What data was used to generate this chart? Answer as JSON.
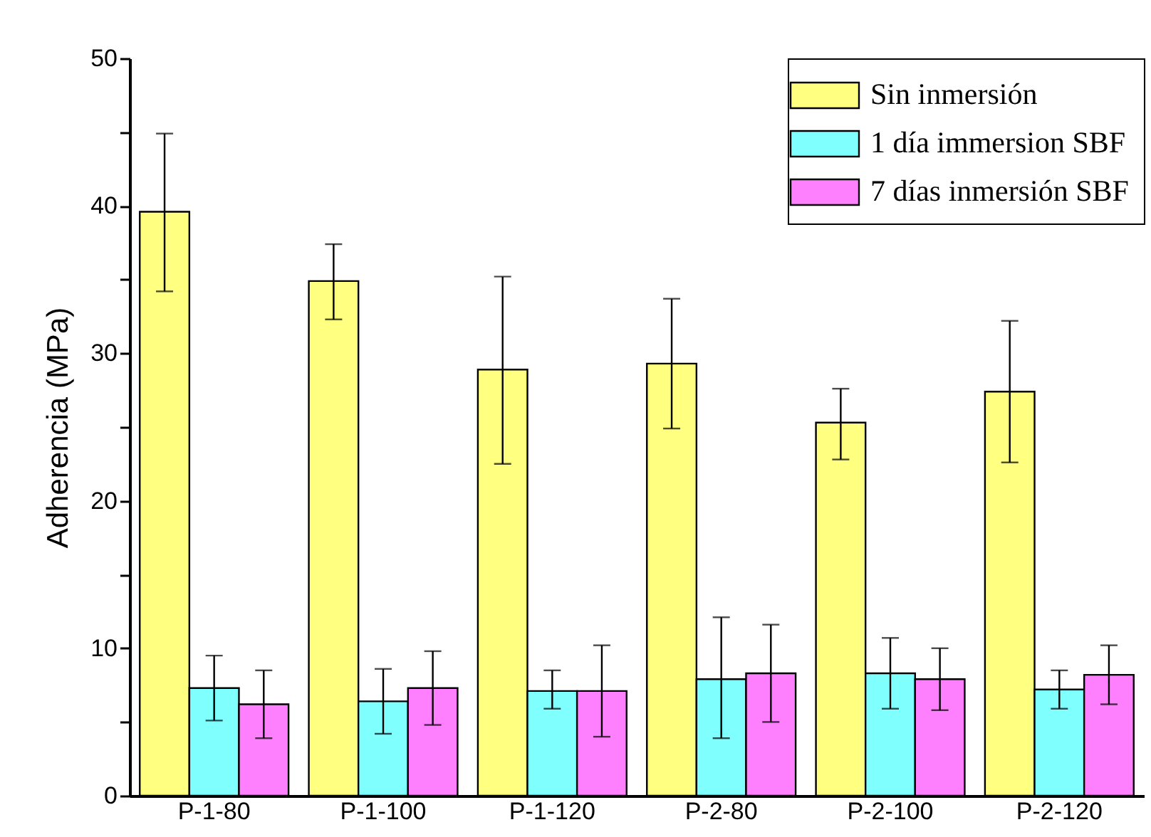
{
  "chart_data": {
    "type": "bar",
    "ylabel": "Adherencia (MPa)",
    "categories": [
      "P-1-80",
      "P-1-100",
      "P-1-120",
      "P-2-80",
      "P-2-100",
      "P-2-120"
    ],
    "series": [
      {
        "name": "Sin inmersión",
        "color": "#ffff80",
        "values": [
          39.6,
          34.9,
          28.9,
          29.3,
          25.3,
          27.4
        ],
        "errors": [
          [
            34.2,
            44.9
          ],
          [
            32.3,
            37.4
          ],
          [
            22.5,
            35.2
          ],
          [
            24.9,
            33.7
          ],
          [
            22.8,
            27.6
          ],
          [
            22.6,
            32.2
          ]
        ]
      },
      {
        "name": "1 día immersion SBF",
        "color": "#80ffff",
        "values": [
          7.3,
          6.4,
          7.1,
          7.9,
          8.3,
          7.2
        ],
        "errors": [
          [
            5.1,
            9.5
          ],
          [
            4.2,
            8.6
          ],
          [
            5.9,
            8.5
          ],
          [
            3.9,
            12.1
          ],
          [
            5.9,
            10.7
          ],
          [
            5.9,
            8.5
          ]
        ]
      },
      {
        "name": "7 días inmersión SBF",
        "color": "#ff80ff",
        "values": [
          6.2,
          7.3,
          7.1,
          8.3,
          7.9,
          8.2
        ],
        "errors": [
          [
            3.9,
            8.5
          ],
          [
            4.8,
            9.8
          ],
          [
            4.0,
            10.2
          ],
          [
            5.0,
            11.6
          ],
          [
            5.8,
            10.0
          ],
          [
            6.2,
            10.2
          ]
        ]
      }
    ],
    "ylim": [
      0,
      50
    ],
    "yticks": [
      0,
      {
        "value": 5,
        "label": null
      },
      10,
      {
        "value": 15,
        "label": null
      },
      20,
      {
        "value": 25,
        "label": null
      },
      30,
      {
        "value": 35,
        "label": null
      },
      40,
      {
        "value": 45,
        "label": null
      },
      50
    ],
    "grid": false,
    "legend": "top right"
  }
}
